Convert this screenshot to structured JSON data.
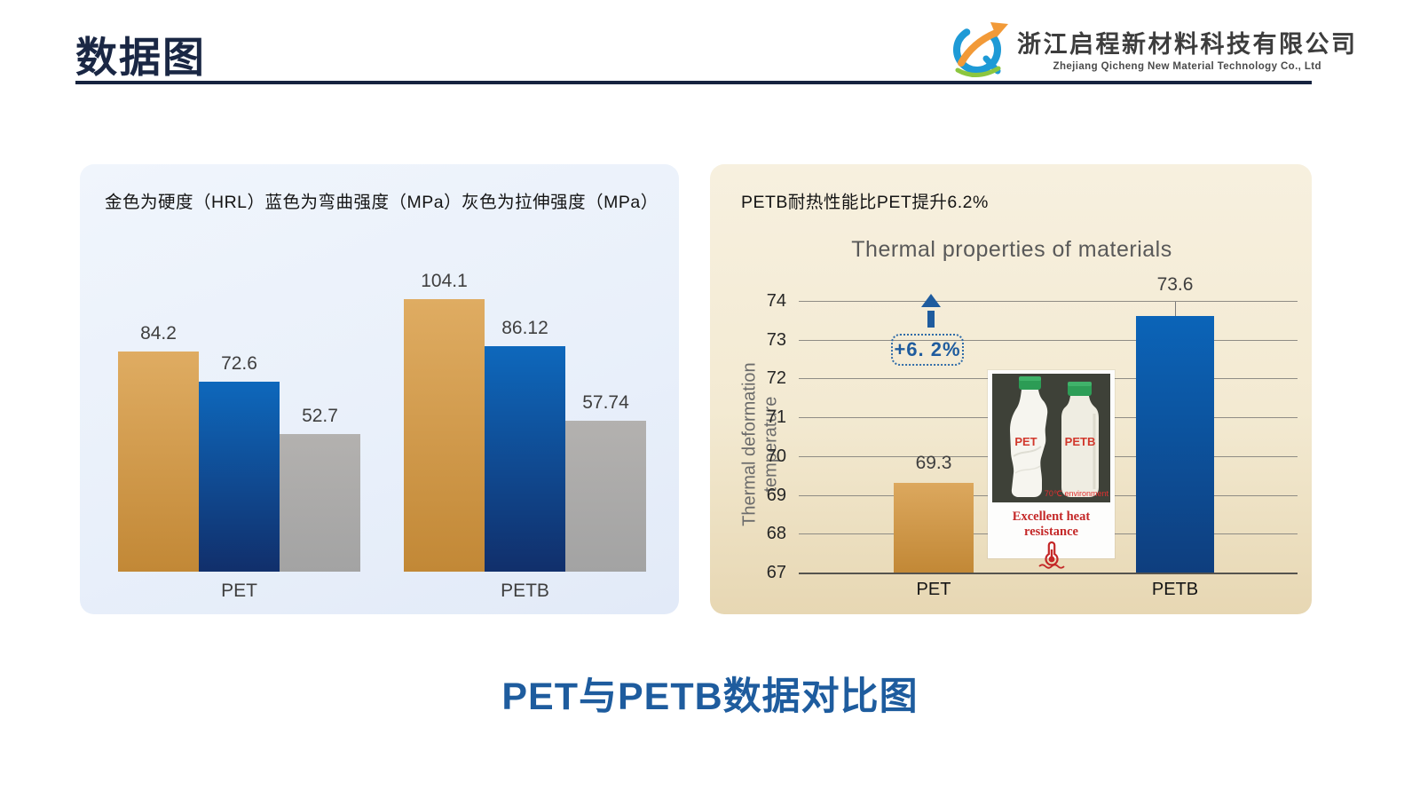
{
  "header": {
    "title": "数据图",
    "logo": {
      "company_cn": "浙江启程新材料科技有限公司",
      "company_en": "Zhejiang Qicheng New Material Technology Co., Ltd"
    }
  },
  "left_panel": {
    "caption": "金色为硬度（HRL）蓝色为弯曲强度（MPa）灰色为拉伸强度（MPa）"
  },
  "right_panel": {
    "caption": "PETB耐热性能比PET提升6.2%",
    "annotation": "+6. 2%",
    "photo": {
      "bottle_left_label": "PET",
      "bottle_right_label": "PETB",
      "environment_note": "70℃ environment",
      "caption": "Excellent heat resistance"
    }
  },
  "footer_title": "PET与PETB数据对比图",
  "colors": {
    "accent_blue": "#1F5C9E",
    "navy_title": "#1A2744",
    "gold_bar": "#D9A455",
    "blue_bar": "#0D5EB0",
    "gray_bar": "#ABABAB"
  },
  "chart_data": [
    {
      "type": "bar",
      "title": "",
      "categories": [
        "PET",
        "PETB"
      ],
      "series": [
        {
          "name": "硬度（HRL）",
          "key": "hardness",
          "color_top": "#DFAC62",
          "color_bottom": "#C28836",
          "values": [
            84.2,
            104.1
          ]
        },
        {
          "name": "弯曲强度（MPa）",
          "key": "bending-strength",
          "color_top": "#0E68BC",
          "color_bottom": "#112F6B",
          "values": [
            72.6,
            86.12
          ]
        },
        {
          "name": "拉伸强度（MPa）",
          "key": "tensile-strength",
          "color_top": "#B3B1AF",
          "color_bottom": "#A3A3A3",
          "values": [
            52.7,
            57.74
          ]
        }
      ],
      "ylim": [
        0,
        110
      ],
      "grid": false,
      "value_labels": true,
      "legend_position": "none (legend given in panel caption text)"
    },
    {
      "type": "bar",
      "title": "Thermal properties of materials",
      "ylabel": "Thermal deformation temperature",
      "categories": [
        "PET",
        "PETB"
      ],
      "values": [
        69.3,
        73.6
      ],
      "bar_colors_top": [
        "#DCA85E",
        "#0B64B8"
      ],
      "bar_colors_bottom": [
        "#C28836",
        "#0E3E7E"
      ],
      "ylim": [
        67,
        74
      ],
      "yticks": [
        74,
        73,
        72,
        71,
        70,
        69,
        68,
        67
      ],
      "grid": true,
      "value_labels": true,
      "label_ticks": [
        false,
        true
      ],
      "annotation": "+6. 2%"
    }
  ]
}
